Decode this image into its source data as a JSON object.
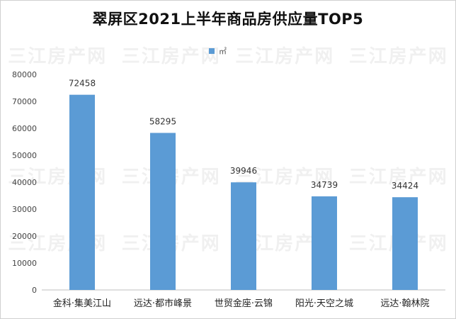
{
  "watermark": "三江房产网",
  "chart_data": {
    "type": "bar",
    "title": "翠屏区2021上半年商品房供应量TOP5",
    "legend": [
      "㎡"
    ],
    "categories": [
      "金科·集美江山",
      "远达·都市峰景",
      "世贸金座·云锦",
      "阳光·天空之城",
      "远达·翰林院"
    ],
    "series": [
      {
        "name": "㎡",
        "values": [
          72458,
          58295,
          39946,
          34739,
          34424
        ]
      }
    ],
    "ylim": [
      0,
      80000
    ],
    "yticks": [
      0,
      10000,
      20000,
      30000,
      40000,
      50000,
      60000,
      70000,
      80000
    ],
    "grid": false,
    "legend_position": "top",
    "bar_color": "#5b9bd5"
  }
}
